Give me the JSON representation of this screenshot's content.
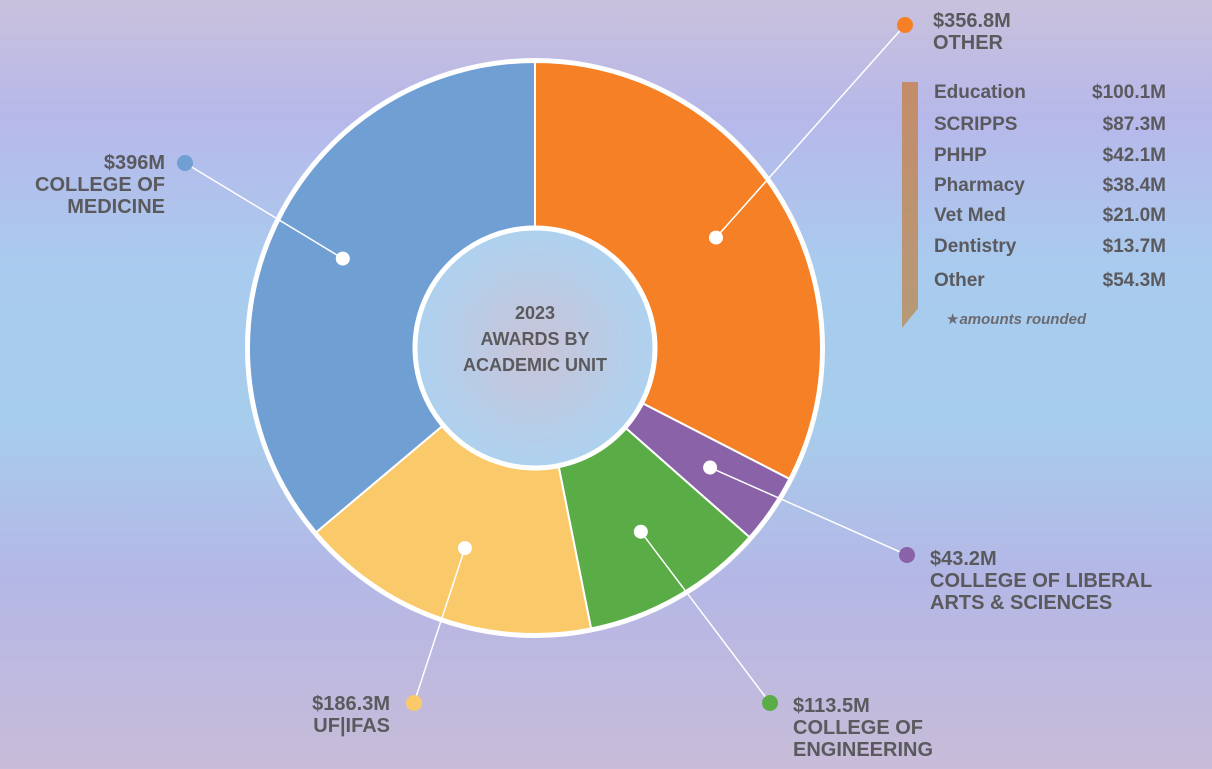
{
  "chart_data": {
    "type": "pie",
    "title": "2023",
    "subtitle": "AWARDS BY ACADEMIC UNIT",
    "categories": [
      "OTHER",
      "COLLEGE OF LIBERAL ARTS & SCIENCES",
      "COLLEGE OF ENGINEERING",
      "UF|IFAS",
      "COLLEGE OF MEDICINE"
    ],
    "values": [
      356.8,
      43.2,
      113.5,
      186.3,
      396
    ],
    "value_labels": [
      "$356.8M",
      "$43.2M",
      "$113.5M",
      "$186.3M",
      "$396M"
    ],
    "colors": [
      "#f58025",
      "#8a62a8",
      "#5aac47",
      "#f9c96a",
      "#6f9fd3"
    ],
    "breakdown": {
      "rows": [
        [
          "Education",
          "$100.1M"
        ],
        [
          "SCRIPPS",
          "$87.3M"
        ],
        [
          "PHHP",
          "$42.1M"
        ],
        [
          "Pharmacy",
          "$38.4M"
        ],
        [
          "Vet Med",
          "$21.0M"
        ],
        [
          "Dentistry",
          "$13.7M"
        ],
        [
          "Other",
          "$54.3M"
        ]
      ],
      "note": "★amounts rounded"
    }
  }
}
